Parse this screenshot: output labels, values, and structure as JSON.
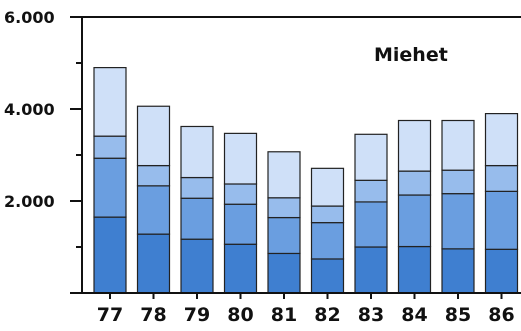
{
  "chart_data": {
    "type": "bar",
    "stacked": true,
    "title": "Miehet",
    "xlabel": "",
    "ylabel": "",
    "ylim": [
      0,
      6000
    ],
    "yticks": [
      {
        "value": 2000,
        "label": "2.000"
      },
      {
        "value": 4000,
        "label": "4.000"
      },
      {
        "value": 6000,
        "label": "6.000"
      }
    ],
    "categories": [
      "77",
      "78",
      "79",
      "80",
      "81",
      "82",
      "83",
      "84",
      "85",
      "86"
    ],
    "series": [
      {
        "color": "#3f7fd0",
        "values": [
          1650,
          1280,
          1170,
          1060,
          860,
          740,
          1000,
          1010,
          960,
          950
        ]
      },
      {
        "color": "#6a9ee0",
        "values": [
          1280,
          1050,
          890,
          870,
          780,
          790,
          980,
          1120,
          1200,
          1260
        ]
      },
      {
        "color": "#97bcec",
        "values": [
          480,
          440,
          450,
          440,
          430,
          360,
          470,
          520,
          510,
          560
        ]
      },
      {
        "color": "#cfe0f8",
        "values": [
          1490,
          1290,
          1110,
          1100,
          1000,
          820,
          1000,
          1100,
          1080,
          1130
        ]
      }
    ],
    "grid": false,
    "legend": "none"
  }
}
